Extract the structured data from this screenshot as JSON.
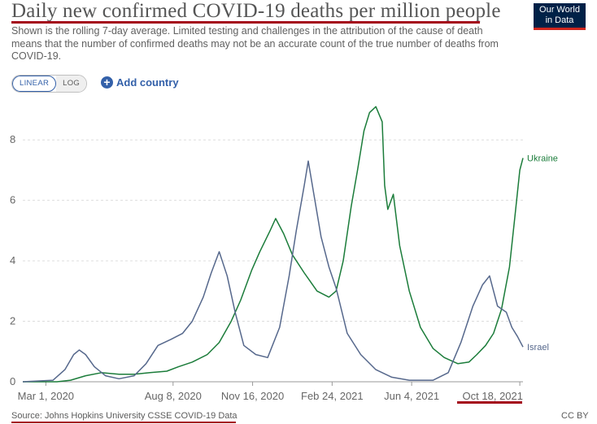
{
  "title": "Daily new confirmed COVID-19 deaths per million people",
  "subtitle": "Shown is the rolling 7-day average. Limited testing and challenges in the attribution of the cause of death means that the number of confirmed deaths may not be an accurate count of the true number of deaths from COVID-19.",
  "logo": {
    "line1": "Our World",
    "line2": "in Data"
  },
  "controls": {
    "linear_label": "LINEAR",
    "log_label": "LOG",
    "add_country_label": "Add country",
    "add_icon": "plus-circle-icon"
  },
  "source": "Source: Johns Hopkins University CSSE COVID-19 Data",
  "license": "CC BY",
  "colors": {
    "Ukraine": "#1b7c3a",
    "Israel": "#56688c",
    "grid": "#dddddd",
    "accent": "#a4061a"
  },
  "chart_data": {
    "type": "line",
    "title": "Daily new confirmed COVID-19 deaths per million people",
    "x_range": [
      "2020-02-01",
      "2021-10-22"
    ],
    "ylim": [
      0,
      9
    ],
    "y_ticks": [
      0,
      2,
      4,
      6,
      8
    ],
    "x_ticks": [
      "Mar 1, 2020",
      "Aug 8, 2020",
      "Nov 16, 2020",
      "Feb 24, 2021",
      "Jun 4, 2021",
      "Oct 18, 2021"
    ],
    "x_tick_dates": [
      "2020-03-01",
      "2020-08-08",
      "2020-11-16",
      "2021-02-24",
      "2021-06-04",
      "2021-10-18"
    ],
    "grid": true,
    "legend": "inline labels at line ends",
    "series": [
      {
        "name": "Ukraine",
        "points": [
          [
            "2020-02-01",
            0
          ],
          [
            "2020-03-15",
            0
          ],
          [
            "2020-04-01",
            0.05
          ],
          [
            "2020-04-20",
            0.2
          ],
          [
            "2020-05-10",
            0.3
          ],
          [
            "2020-06-01",
            0.25
          ],
          [
            "2020-06-20",
            0.25
          ],
          [
            "2020-07-10",
            0.3
          ],
          [
            "2020-07-31",
            0.35
          ],
          [
            "2020-08-15",
            0.5
          ],
          [
            "2020-09-01",
            0.65
          ],
          [
            "2020-09-20",
            0.9
          ],
          [
            "2020-10-05",
            1.3
          ],
          [
            "2020-10-20",
            2.0
          ],
          [
            "2020-11-01",
            2.7
          ],
          [
            "2020-11-15",
            3.7
          ],
          [
            "2020-11-25",
            4.3
          ],
          [
            "2020-12-08",
            5.0
          ],
          [
            "2020-12-15",
            5.4
          ],
          [
            "2020-12-25",
            4.9
          ],
          [
            "2021-01-05",
            4.2
          ],
          [
            "2021-01-20",
            3.6
          ],
          [
            "2021-02-05",
            3.0
          ],
          [
            "2021-02-20",
            2.8
          ],
          [
            "2021-03-01",
            3.0
          ],
          [
            "2021-03-10",
            4.0
          ],
          [
            "2021-03-20",
            5.8
          ],
          [
            "2021-03-28",
            7.0
          ],
          [
            "2021-04-05",
            8.3
          ],
          [
            "2021-04-12",
            8.9
          ],
          [
            "2021-04-20",
            9.1
          ],
          [
            "2021-04-28",
            8.6
          ],
          [
            "2021-05-01",
            6.5
          ],
          [
            "2021-05-05",
            5.7
          ],
          [
            "2021-05-12",
            6.2
          ],
          [
            "2021-05-20",
            4.5
          ],
          [
            "2021-06-01",
            3.0
          ],
          [
            "2021-06-15",
            1.8
          ],
          [
            "2021-07-01",
            1.1
          ],
          [
            "2021-07-15",
            0.8
          ],
          [
            "2021-08-01",
            0.6
          ],
          [
            "2021-08-15",
            0.65
          ],
          [
            "2021-08-25",
            0.9
          ],
          [
            "2021-09-05",
            1.2
          ],
          [
            "2021-09-15",
            1.6
          ],
          [
            "2021-09-25",
            2.4
          ],
          [
            "2021-10-05",
            3.8
          ],
          [
            "2021-10-12",
            5.5
          ],
          [
            "2021-10-18",
            7.0
          ],
          [
            "2021-10-22",
            7.4
          ]
        ]
      },
      {
        "name": "Israel",
        "points": [
          [
            "2020-02-01",
            0
          ],
          [
            "2020-03-10",
            0.05
          ],
          [
            "2020-03-25",
            0.4
          ],
          [
            "2020-04-05",
            0.9
          ],
          [
            "2020-04-12",
            1.05
          ],
          [
            "2020-04-20",
            0.9
          ],
          [
            "2020-05-01",
            0.5
          ],
          [
            "2020-05-15",
            0.2
          ],
          [
            "2020-06-01",
            0.1
          ],
          [
            "2020-06-20",
            0.2
          ],
          [
            "2020-07-05",
            0.6
          ],
          [
            "2020-07-20",
            1.2
          ],
          [
            "2020-08-05",
            1.4
          ],
          [
            "2020-08-20",
            1.6
          ],
          [
            "2020-09-01",
            2.0
          ],
          [
            "2020-09-15",
            2.8
          ],
          [
            "2020-09-25",
            3.6
          ],
          [
            "2020-10-05",
            4.3
          ],
          [
            "2020-10-15",
            3.5
          ],
          [
            "2020-10-25",
            2.3
          ],
          [
            "2020-11-05",
            1.2
          ],
          [
            "2020-11-20",
            0.9
          ],
          [
            "2020-12-05",
            0.8
          ],
          [
            "2020-12-20",
            1.8
          ],
          [
            "2021-01-01",
            3.5
          ],
          [
            "2021-01-10",
            5.0
          ],
          [
            "2021-01-20",
            6.5
          ],
          [
            "2021-01-25",
            7.3
          ],
          [
            "2021-02-01",
            6.2
          ],
          [
            "2021-02-10",
            4.8
          ],
          [
            "2021-02-20",
            3.8
          ],
          [
            "2021-03-01",
            3.1
          ],
          [
            "2021-03-15",
            1.6
          ],
          [
            "2021-04-01",
            0.9
          ],
          [
            "2021-04-20",
            0.4
          ],
          [
            "2021-05-10",
            0.15
          ],
          [
            "2021-06-01",
            0.05
          ],
          [
            "2021-07-01",
            0.05
          ],
          [
            "2021-07-20",
            0.3
          ],
          [
            "2021-08-05",
            1.3
          ],
          [
            "2021-08-20",
            2.5
          ],
          [
            "2021-09-01",
            3.2
          ],
          [
            "2021-09-10",
            3.5
          ],
          [
            "2021-09-20",
            2.5
          ],
          [
            "2021-10-01",
            2.3
          ],
          [
            "2021-10-08",
            1.8
          ],
          [
            "2021-10-15",
            1.5
          ],
          [
            "2021-10-22",
            1.15
          ]
        ]
      }
    ]
  }
}
